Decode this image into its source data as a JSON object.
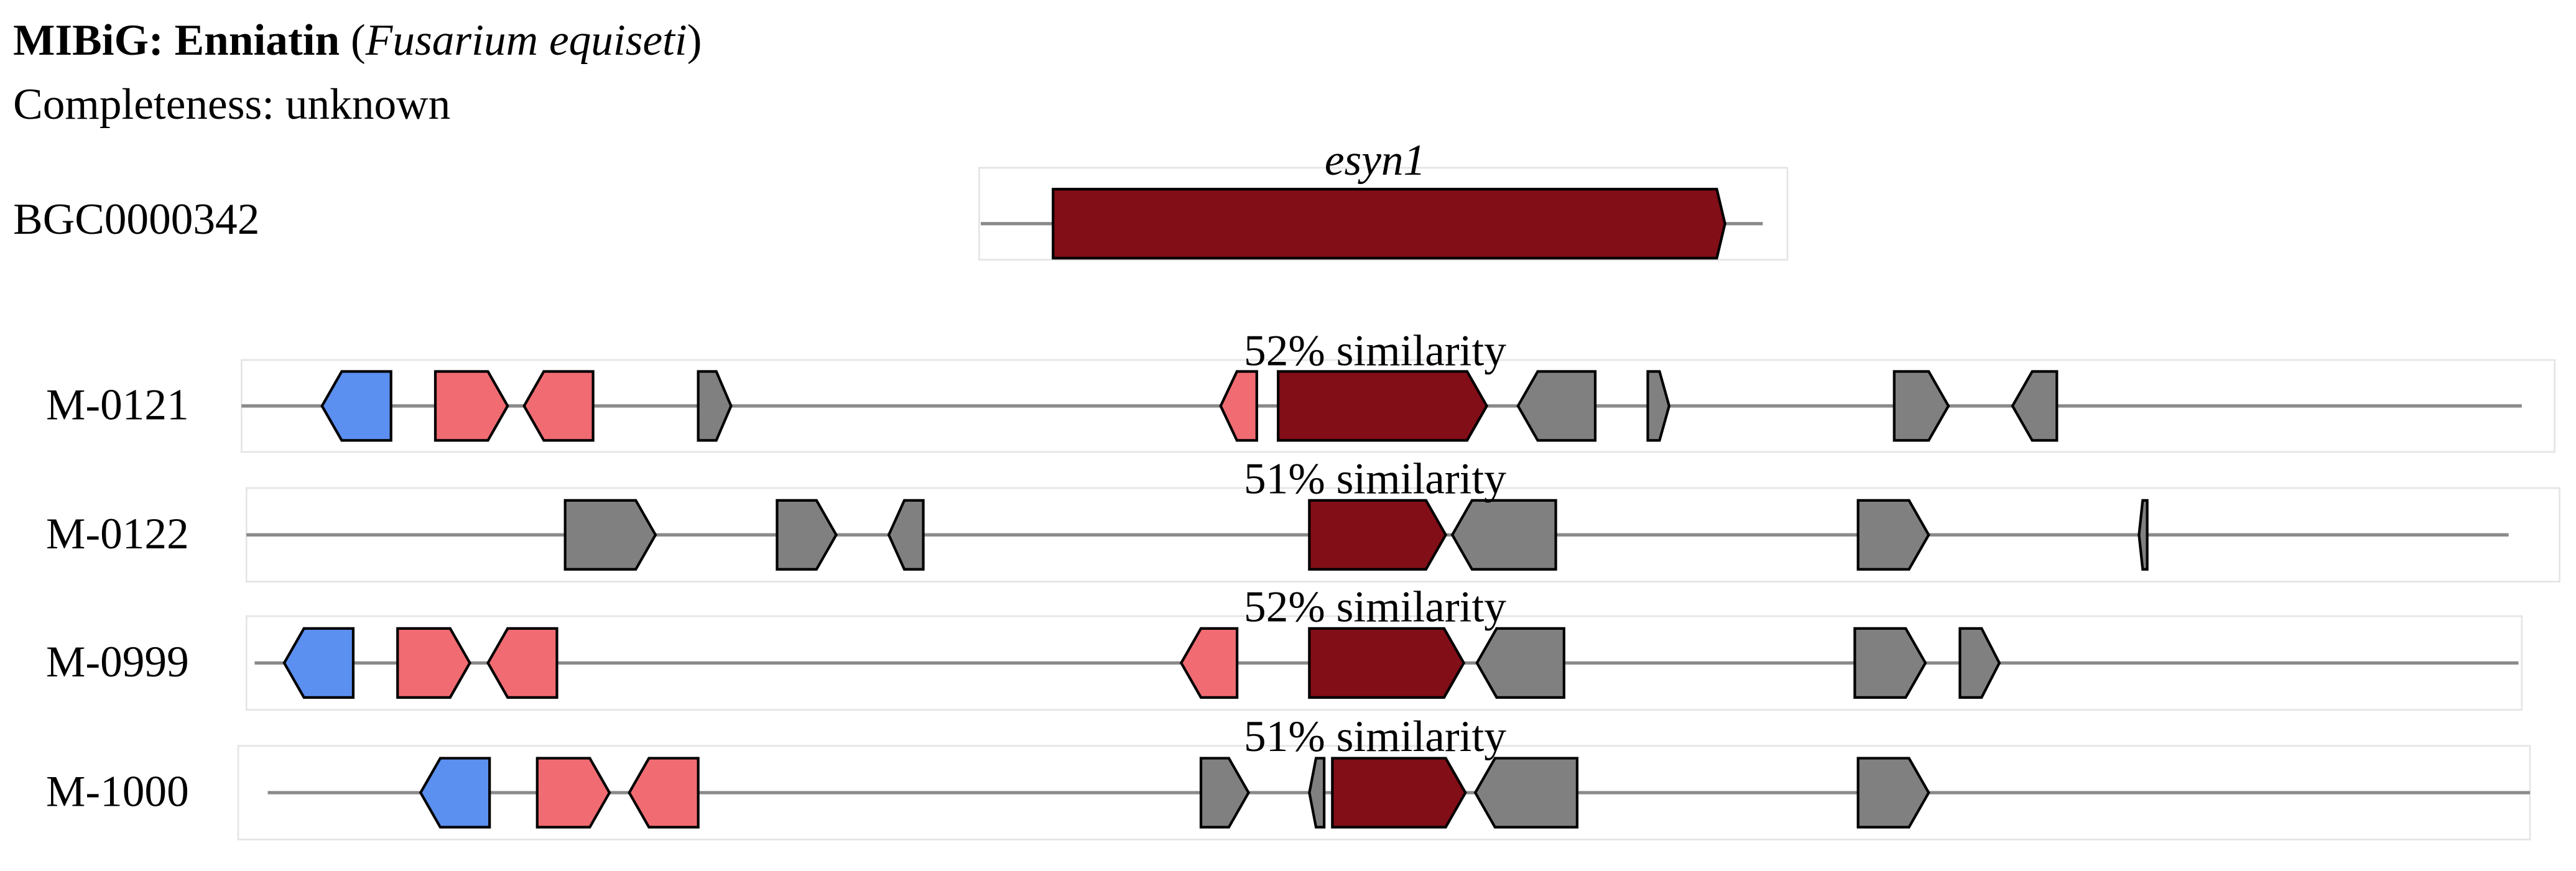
{
  "header": {
    "title_parts": [
      {
        "text": "MIBiG: Enniatin",
        "style": "bold"
      },
      {
        "text": " (",
        "style": "normal"
      },
      {
        "text": "Fusarium equiseti",
        "style": "italic"
      },
      {
        "text": ")",
        "style": "normal"
      }
    ],
    "completeness": "Completeness: unknown"
  },
  "reference": {
    "id": "BGC0000342",
    "gene": "esyn1"
  },
  "matches": [
    {
      "name": "M-0121",
      "similarity": "52% similarity"
    },
    {
      "name": "M-0122",
      "similarity": "51% similarity"
    },
    {
      "name": "M-0999",
      "similarity": "52% similarity"
    },
    {
      "name": "M-1000",
      "similarity": "51% similarity"
    }
  ]
}
